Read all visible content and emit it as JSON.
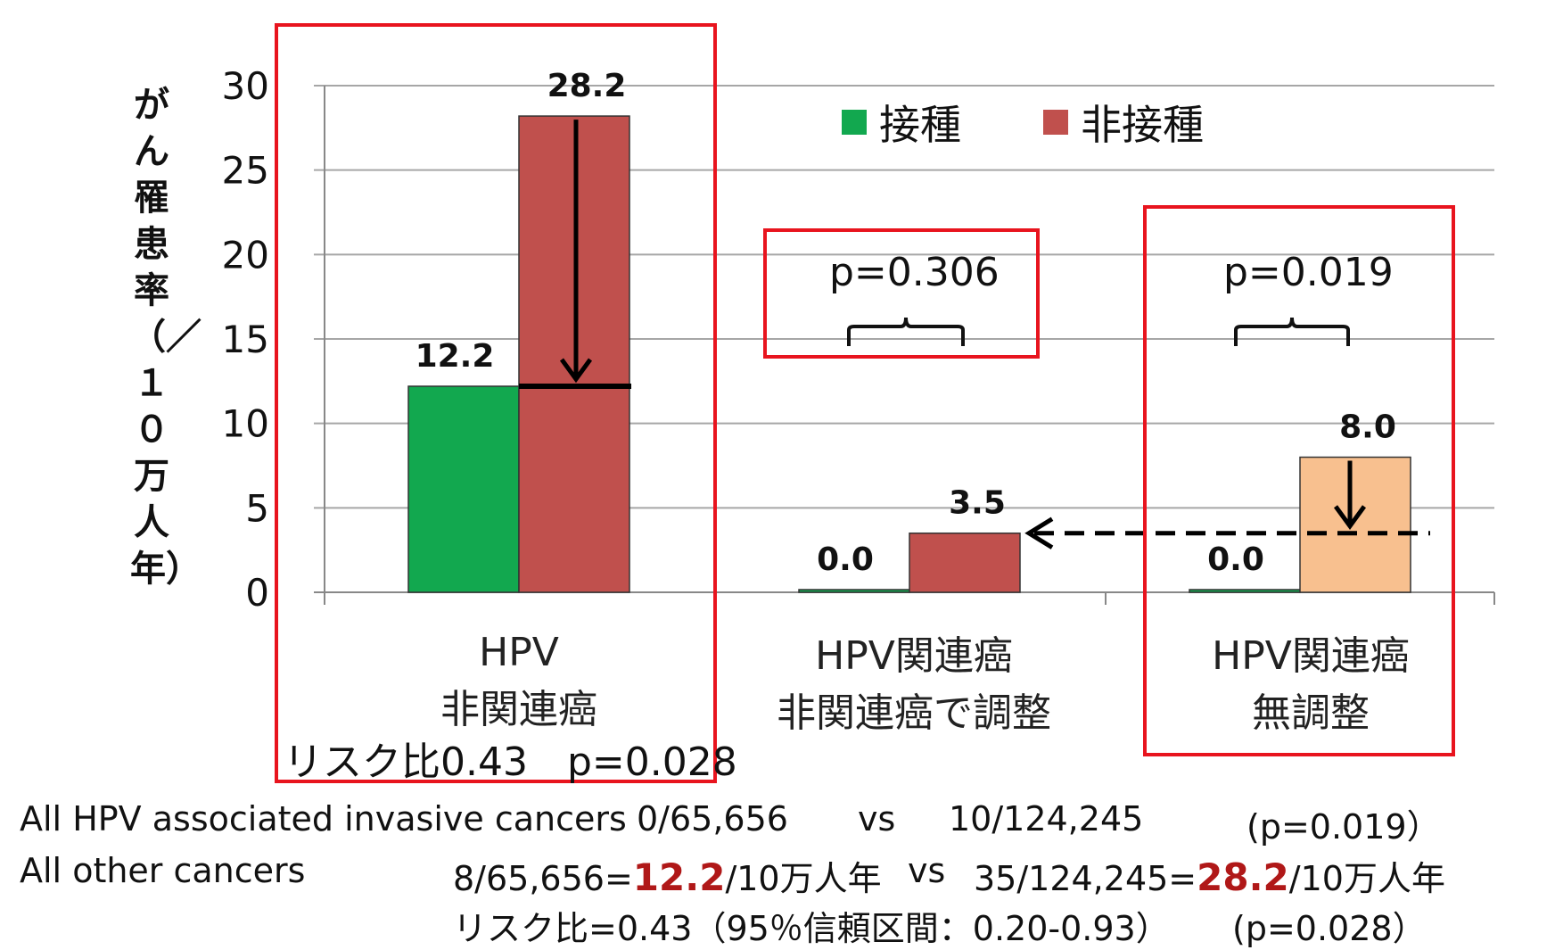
{
  "chart_data": {
    "type": "bar",
    "ylabel": "がん罹患率（／１０万人年）",
    "ylim": [
      0,
      30
    ],
    "yticks": [
      "0",
      "5",
      "10",
      "15",
      "20",
      "25",
      "30"
    ],
    "categories": [
      [
        "HPV",
        "非関連癌"
      ],
      [
        "HPV関連癌",
        "非関連癌で調整"
      ],
      [
        "HPV関連癌",
        "無調整"
      ]
    ],
    "series": [
      {
        "name": "接種",
        "color": "#12a84f",
        "values": [
          12.2,
          0.0,
          0.0
        ],
        "labels": [
          "12.2",
          "0.0",
          "0.0"
        ]
      },
      {
        "name": "非接種",
        "color": "#c0504d",
        "values": [
          28.2,
          3.5,
          8.0
        ],
        "labels": [
          "28.2",
          "3.5",
          "8.0"
        ],
        "point_colors": [
          "#c0504d",
          "#c0504d",
          "#f8c08f"
        ]
      }
    ],
    "legend_position": "top-right",
    "grid": true,
    "annotations": {
      "risk_ratio": "リスク比0.43　p=0.028",
      "p_value_1": "p=0.306",
      "p_value_2": "p=0.019"
    },
    "highlight_color": "#e8141e"
  },
  "footer": {
    "row1": {
      "label": "All HPV associated invasive cancers",
      "vaccinated": "0/65,656",
      "vs": "vs",
      "unvaccinated": "10/124,245",
      "p": "(p=0.019）"
    },
    "row2": {
      "label": "All other cancers",
      "vaccinated_pre": "8/65,656=",
      "vaccinated_value": "12.2",
      "vaccinated_post": "/10万人年",
      "vs": "vs",
      "unvaccinated_pre": "35/124,245=",
      "unvaccinated_value": "28.2",
      "unvaccinated_post": "/10万人年"
    },
    "row3": {
      "text": "リスク比=0.43（95％信頼区間：0.20-0.93）",
      "p": "(p=0.028）"
    }
  }
}
